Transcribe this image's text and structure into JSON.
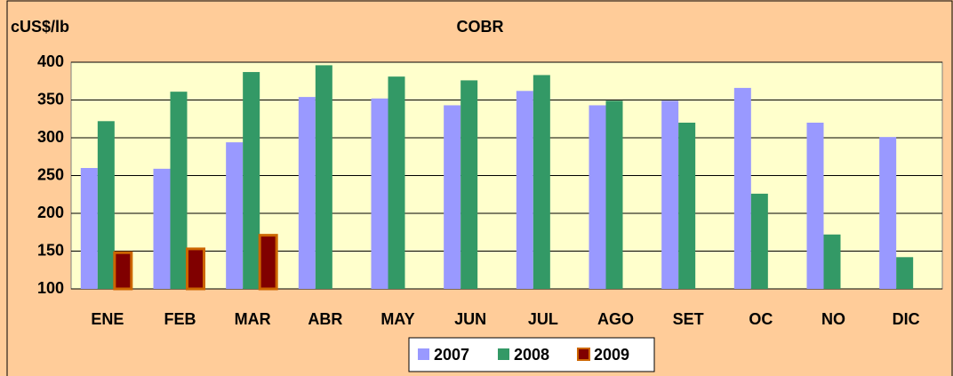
{
  "chart_data": {
    "type": "bar",
    "title": "COBR",
    "y_label": "cUS$/lb",
    "categories": [
      "ENE",
      "FEB",
      "MAR",
      "ABR",
      "MAY",
      "JUN",
      "JUL",
      "AGO",
      "SET",
      "OC",
      "NO",
      "DIC"
    ],
    "series": [
      {
        "name": "2007",
        "color": "#9999ff",
        "values": [
          260,
          259,
          294,
          354,
          352,
          343,
          362,
          343,
          349,
          366,
          320,
          301
        ]
      },
      {
        "name": "2008",
        "color": "#339966",
        "values": [
          322,
          361,
          387,
          396,
          381,
          376,
          383,
          349,
          320,
          226,
          172,
          142
        ]
      },
      {
        "name": "2009",
        "color": "#800000",
        "values": [
          148,
          153,
          171,
          null,
          null,
          null,
          null,
          null,
          null,
          null,
          null,
          null
        ]
      }
    ],
    "ylim": [
      100,
      400
    ],
    "yticks": [
      100,
      150,
      200,
      250,
      300,
      350,
      400
    ],
    "grid": true
  }
}
